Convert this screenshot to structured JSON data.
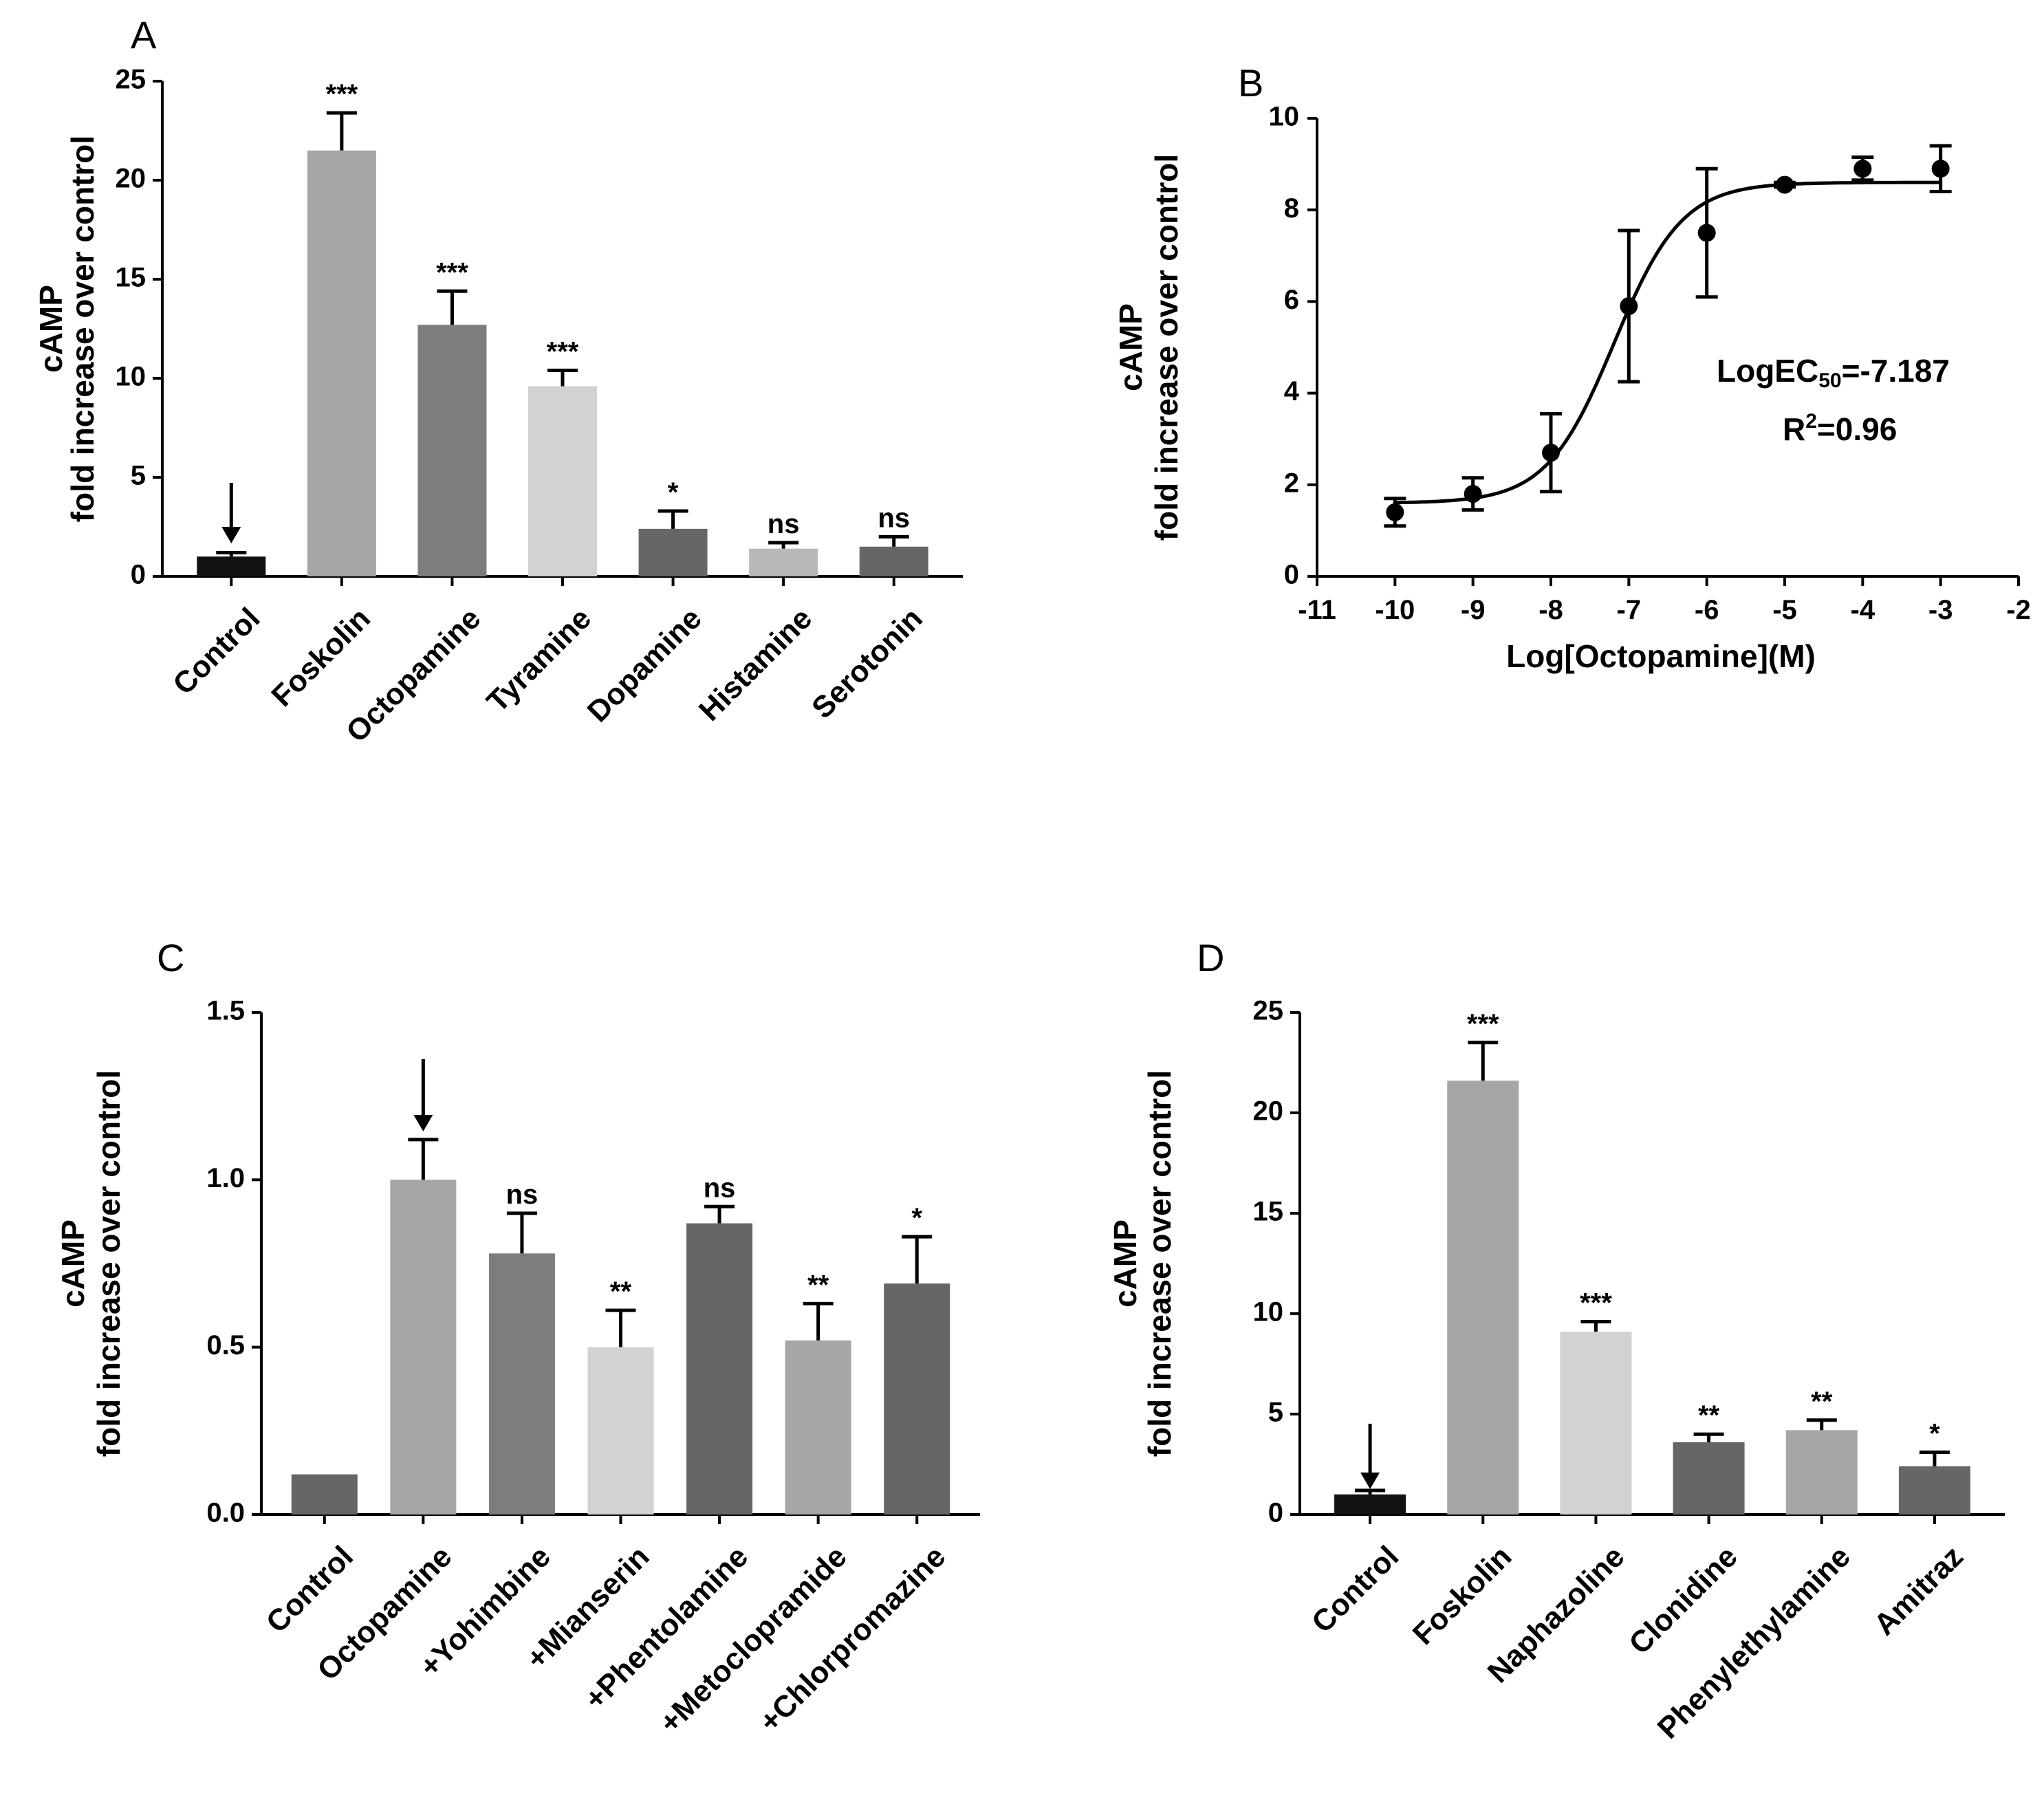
{
  "chart_data": [
    {
      "id": "A",
      "type": "bar",
      "panel_label": "A",
      "ylabel_line1": "cAMP",
      "ylabel_line2": "fold increase over control",
      "ylim": [
        0,
        25
      ],
      "yticks": [
        "0",
        "5",
        "10",
        "15",
        "20",
        "25"
      ],
      "categories": [
        "Control",
        "Foskolin",
        "Octopamine",
        "Tyramine",
        "Dopamine",
        "Histamine",
        "Serotonin"
      ],
      "values": [
        1.0,
        21.5,
        12.7,
        9.6,
        2.4,
        1.4,
        1.5
      ],
      "errors": [
        0.2,
        1.9,
        1.7,
        0.8,
        0.9,
        0.3,
        0.5
      ],
      "significance": [
        "",
        "***",
        "***",
        "***",
        "*",
        "ns",
        "ns"
      ],
      "colors": [
        "#111111",
        "#a6a6a9",
        "#7d7d7f",
        "#d2d2d3",
        "#666666",
        "#b8b8bb",
        "#666666"
      ],
      "arrow_category": "Control"
    },
    {
      "id": "B",
      "type": "scatter",
      "panel_label": "B",
      "ylabel_line1": "cAMP",
      "ylabel_line2": "fold increase over control",
      "xlabel": "Log[Octopamine](M)",
      "xlim": [
        -11,
        -2
      ],
      "ylim": [
        0,
        10
      ],
      "xticks": [
        "-11",
        "-10",
        "-9",
        "-8",
        "-7",
        "-6",
        "-5",
        "-4",
        "-3",
        "-2"
      ],
      "yticks": [
        "0",
        "2",
        "4",
        "6",
        "8",
        "10"
      ],
      "x": [
        -10,
        -9,
        -8,
        -7,
        -6,
        -5,
        -4,
        -3
      ],
      "y": [
        1.4,
        1.8,
        2.7,
        5.9,
        7.5,
        8.55,
        8.9,
        8.9
      ],
      "errors": [
        0.3,
        0.35,
        0.85,
        1.65,
        1.4,
        0.05,
        0.25,
        0.5
      ],
      "fit": {
        "bottom": 1.6,
        "top": 8.6,
        "logEC50": -7.187,
        "hill": 1.0
      },
      "annotation_logec_prefix": "LogEC",
      "annotation_logec_sub": "50",
      "annotation_logec_value": "=-7.187",
      "annotation_r2_prefix": "R",
      "annotation_r2_sup": "2",
      "annotation_r2_value": "=0.96"
    },
    {
      "id": "C",
      "type": "bar",
      "panel_label": "C",
      "ylabel_line1": "cAMP",
      "ylabel_line2": "fold increase over control",
      "ylim": [
        0,
        1.5
      ],
      "yticks": [
        "0.0",
        "0.5",
        "1.0",
        "1.5"
      ],
      "categories": [
        "Control",
        "Octopamine",
        "+Yohimbine",
        "+Mianserin",
        "+Phentolamine",
        "+Metoclopramide",
        "+Chlorpromazine"
      ],
      "values": [
        0.12,
        1.0,
        0.78,
        0.5,
        0.87,
        0.52,
        0.69
      ],
      "errors": [
        0.0,
        0.12,
        0.12,
        0.11,
        0.05,
        0.11,
        0.14
      ],
      "significance": [
        "",
        "",
        "ns",
        "**",
        "ns",
        "**",
        "*"
      ],
      "colors": [
        "#666666",
        "#a6a6a9",
        "#7d7d7f",
        "#d2d2d3",
        "#666666",
        "#a6a6a9",
        "#666666"
      ],
      "arrow_category": "Octopamine"
    },
    {
      "id": "D",
      "type": "bar",
      "panel_label": "D",
      "ylabel_line1": "cAMP",
      "ylabel_line2": "fold increase over control",
      "ylim": [
        0,
        25
      ],
      "yticks": [
        "0",
        "5",
        "10",
        "15",
        "20",
        "25"
      ],
      "categories": [
        "Control",
        "Foskolin",
        "Naphazoline",
        "Clonidine",
        "Phenylethylamine",
        "Amitraz"
      ],
      "values": [
        1.0,
        21.6,
        9.1,
        3.6,
        4.2,
        2.4
      ],
      "errors": [
        0.2,
        1.9,
        0.5,
        0.4,
        0.5,
        0.7
      ],
      "significance": [
        "",
        "***",
        "***",
        "**",
        "**",
        "*"
      ],
      "colors": [
        "#111111",
        "#a6a6a9",
        "#d2d2d3",
        "#666666",
        "#a6a6a9",
        "#666666"
      ],
      "arrow_category": "Control"
    }
  ]
}
